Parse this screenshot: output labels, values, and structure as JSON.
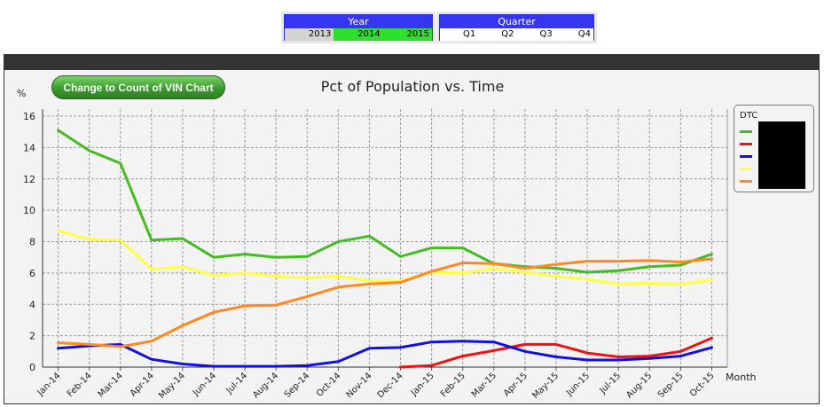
{
  "year_listbox": {
    "title": "Year",
    "items": [
      {
        "label": "2013",
        "state": "na"
      },
      {
        "label": "2014",
        "state": "sel"
      },
      {
        "label": "2015",
        "state": "sel"
      }
    ]
  },
  "quarter_listbox": {
    "title": "Quarter",
    "items": [
      {
        "label": "Q1",
        "state": "free"
      },
      {
        "label": "Q2",
        "state": "free"
      },
      {
        "label": "Q3",
        "state": "free"
      },
      {
        "label": "Q4",
        "state": "free"
      }
    ]
  },
  "toggle_button": {
    "label": "Change to Count of VIN Chart"
  },
  "legend": {
    "title": "DTC"
  },
  "chart_data": {
    "type": "line",
    "title": "Pct of Population vs. Time",
    "ylabel": "%",
    "xlabel": "Month",
    "ylim": [
      0,
      16
    ],
    "yticks": [
      0,
      2,
      4,
      6,
      8,
      10,
      12,
      14,
      16
    ],
    "categories": [
      "Jan-14",
      "Feb-14",
      "Mar-14",
      "Apr-14",
      "May-14",
      "Jun-14",
      "Jul-14",
      "Aug-14",
      "Sep-14",
      "Oct-14",
      "Nov-14",
      "Dec-14",
      "Jan-15",
      "Feb-15",
      "Mar-15",
      "Apr-15",
      "May-15",
      "Jun-15",
      "Jul-15",
      "Aug-15",
      "Sep-15",
      "Oct-15"
    ],
    "series": [
      {
        "name": "",
        "color": "#44bb22",
        "values": [
          15.1,
          13.8,
          13.0,
          8.1,
          8.2,
          7.0,
          7.2,
          7.0,
          7.05,
          8.0,
          8.35,
          7.05,
          7.6,
          7.6,
          6.6,
          6.4,
          6.3,
          6.05,
          6.15,
          6.4,
          6.5,
          7.2
        ]
      },
      {
        "name": "",
        "color": "#ee1111",
        "values": [
          null,
          null,
          null,
          null,
          null,
          null,
          null,
          null,
          null,
          null,
          null,
          0.0,
          0.1,
          0.7,
          1.05,
          1.45,
          1.45,
          0.9,
          0.65,
          0.7,
          1.0,
          1.85
        ]
      },
      {
        "name": "",
        "color": "#1111dd",
        "values": [
          1.2,
          1.35,
          1.45,
          0.5,
          0.2,
          0.05,
          0.05,
          0.05,
          0.1,
          0.35,
          1.2,
          1.25,
          1.6,
          1.65,
          1.6,
          1.0,
          0.65,
          0.45,
          0.45,
          0.55,
          0.7,
          1.25
        ]
      },
      {
        "name": "",
        "color": "#ffff44",
        "values": [
          8.7,
          8.15,
          8.1,
          6.25,
          6.4,
          5.85,
          6.0,
          5.8,
          5.7,
          5.8,
          5.5,
          5.5,
          6.05,
          6.0,
          6.3,
          6.05,
          5.8,
          5.6,
          5.3,
          5.35,
          5.3,
          5.55
        ]
      },
      {
        "name": "",
        "color": "#ff8822",
        "values": [
          1.55,
          1.45,
          1.3,
          1.65,
          2.65,
          3.5,
          3.9,
          3.95,
          4.5,
          5.1,
          5.3,
          5.4,
          6.1,
          6.65,
          6.6,
          6.3,
          6.55,
          6.75,
          6.75,
          6.8,
          6.7,
          6.9
        ]
      }
    ]
  }
}
